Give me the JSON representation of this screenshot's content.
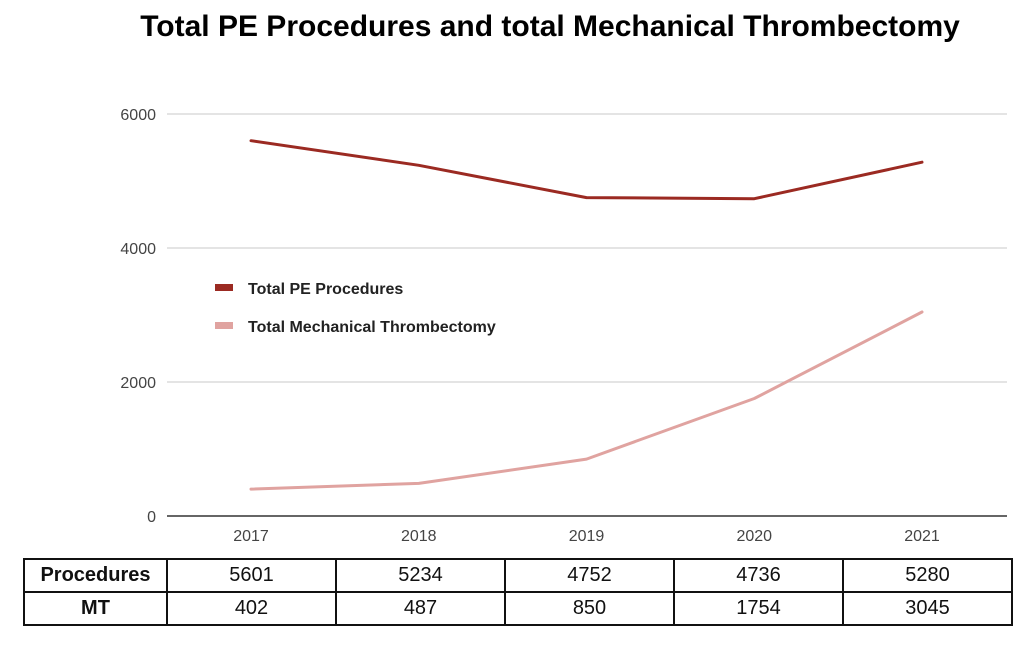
{
  "chart_data": {
    "type": "line",
    "title": "Total PE Procedures and total Mechanical Thrombectomy",
    "xlabel": "",
    "ylabel": "",
    "categories": [
      "2017",
      "2018",
      "2019",
      "2020",
      "2021"
    ],
    "ylim": [
      0,
      6000
    ],
    "yticks": [
      0,
      2000,
      4000,
      6000
    ],
    "grid": true,
    "legend_position": "left, inside plot",
    "series": [
      {
        "name": "Total PE Procedures",
        "color": "#9b2a22",
        "values": [
          5601,
          5234,
          4752,
          4736,
          5280
        ]
      },
      {
        "name": "Total Mechanical Thrombectomy",
        "color": "#e0a3a0",
        "values": [
          402,
          487,
          850,
          1754,
          3045
        ]
      }
    ]
  },
  "table": {
    "rows": [
      {
        "label": "Procedures",
        "values": [
          "5601",
          "5234",
          "4752",
          "4736",
          "5280"
        ]
      },
      {
        "label": "MT",
        "values": [
          "402",
          "487",
          "850",
          "1754",
          "3045"
        ]
      }
    ]
  }
}
